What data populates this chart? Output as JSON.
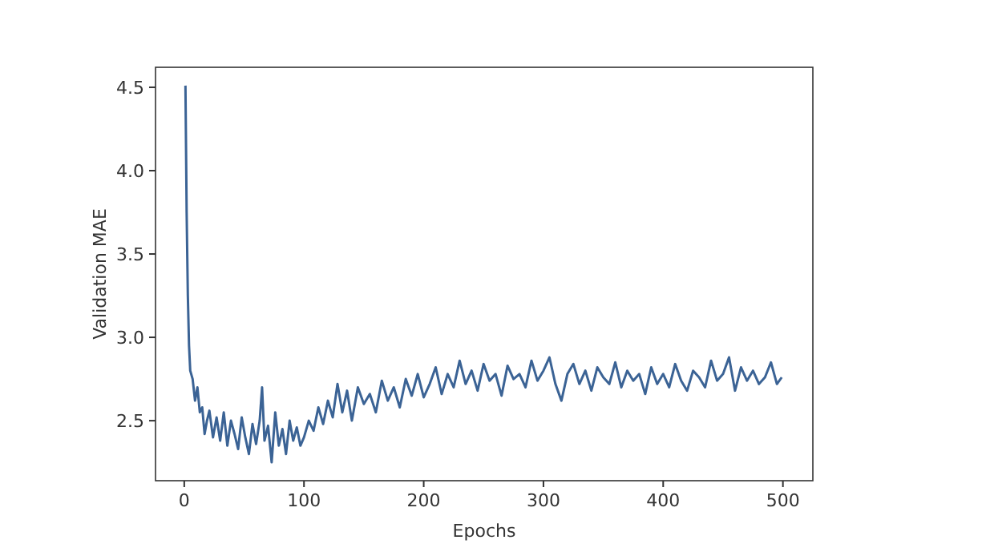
{
  "chart_data": {
    "type": "line",
    "xlabel": "Epochs",
    "ylabel": "Validation MAE",
    "xlim": [
      -24,
      525
    ],
    "ylim": [
      2.14,
      4.62
    ],
    "xticks": [
      0,
      100,
      200,
      300,
      400,
      500
    ],
    "yticks": [
      {
        "value": 2.5,
        "label": "2.5"
      },
      {
        "value": 3,
        "label": "3.0"
      },
      {
        "value": 3.5,
        "label": "3.5"
      },
      {
        "value": 4,
        "label": "4.0"
      },
      {
        "value": 4.5,
        "label": "4.5"
      }
    ],
    "grid": false,
    "marker": "none",
    "line_style": "solid",
    "series": [
      {
        "color": "#3b6395",
        "x": [
          1,
          2,
          3,
          4,
          5,
          7,
          9,
          11,
          13,
          15,
          17,
          19,
          21,
          24,
          27,
          30,
          33,
          36,
          39,
          42,
          45,
          48,
          51,
          54,
          57,
          60,
          63,
          65,
          67,
          70,
          73,
          76,
          79,
          82,
          85,
          88,
          91,
          94,
          97,
          100,
          104,
          108,
          112,
          116,
          120,
          124,
          128,
          132,
          136,
          140,
          145,
          150,
          155,
          160,
          165,
          170,
          175,
          180,
          185,
          190,
          195,
          200,
          205,
          210,
          215,
          220,
          225,
          230,
          235,
          240,
          245,
          250,
          255,
          260,
          265,
          270,
          275,
          280,
          285,
          290,
          295,
          300,
          305,
          310,
          315,
          320,
          325,
          330,
          335,
          340,
          345,
          350,
          355,
          360,
          365,
          370,
          375,
          380,
          385,
          390,
          395,
          400,
          405,
          410,
          415,
          420,
          425,
          430,
          435,
          440,
          445,
          450,
          455,
          460,
          465,
          470,
          475,
          480,
          485,
          490,
          495,
          499
        ],
        "values": [
          4.51,
          3.75,
          3.25,
          2.95,
          2.8,
          2.75,
          2.62,
          2.7,
          2.55,
          2.58,
          2.42,
          2.5,
          2.56,
          2.4,
          2.52,
          2.38,
          2.55,
          2.35,
          2.5,
          2.42,
          2.33,
          2.52,
          2.4,
          2.3,
          2.48,
          2.36,
          2.5,
          2.7,
          2.38,
          2.47,
          2.25,
          2.55,
          2.35,
          2.45,
          2.3,
          2.5,
          2.38,
          2.46,
          2.35,
          2.4,
          2.5,
          2.44,
          2.58,
          2.48,
          2.62,
          2.52,
          2.72,
          2.55,
          2.68,
          2.5,
          2.7,
          2.6,
          2.66,
          2.55,
          2.74,
          2.62,
          2.7,
          2.58,
          2.75,
          2.65,
          2.78,
          2.64,
          2.72,
          2.82,
          2.66,
          2.78,
          2.7,
          2.86,
          2.72,
          2.8,
          2.68,
          2.84,
          2.74,
          2.78,
          2.65,
          2.83,
          2.75,
          2.78,
          2.7,
          2.86,
          2.74,
          2.8,
          2.88,
          2.72,
          2.62,
          2.78,
          2.84,
          2.72,
          2.8,
          2.68,
          2.82,
          2.76,
          2.72,
          2.85,
          2.7,
          2.8,
          2.74,
          2.78,
          2.66,
          2.82,
          2.72,
          2.78,
          2.7,
          2.84,
          2.74,
          2.68,
          2.8,
          2.76,
          2.7,
          2.86,
          2.74,
          2.78,
          2.88,
          2.68,
          2.82,
          2.74,
          2.8,
          2.72,
          2.76,
          2.85,
          2.72,
          2.76
        ]
      }
    ]
  }
}
